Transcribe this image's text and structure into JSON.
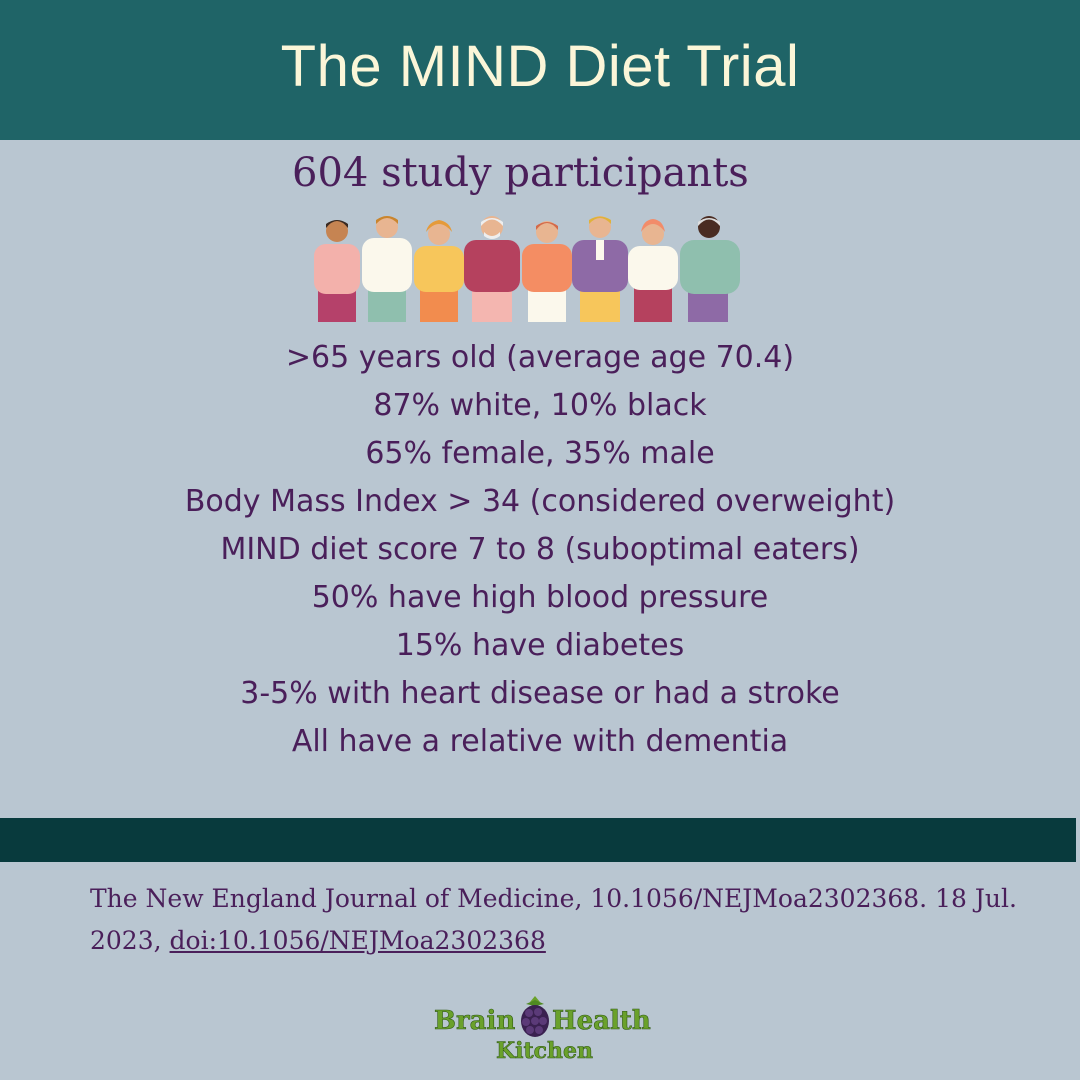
{
  "header": {
    "title": "The MIND Diet Trial"
  },
  "subtitle": "604 study participants",
  "facts": [
    ">65 years old (average age 70.4)",
    "87% white, 10% black",
    "65% female, 35% male",
    "Body Mass Index > 34 (considered overweight)",
    "MIND diet score 7 to 8 (suboptimal eaters)",
    "50% have high blood pressure",
    "15% have diabetes",
    "3-5% with heart disease or had a stroke",
    "All have a relative with dementia"
  ],
  "citation": {
    "text": "The New England Journal of Medicine, 10.1056/NEJMoa2302368. 18 Jul. 2023, ",
    "doi": "doi:10.1056/NEJMoa2302368"
  },
  "logo": {
    "word1": "Brain",
    "word2": "Health",
    "word3": "Kitchen"
  },
  "colors": {
    "header_bg": "#1f6467",
    "title_text": "#fbf6d8",
    "page_bg": "#b9c6d1",
    "body_text": "#4a1f5a",
    "band": "#083a3d",
    "logo_green": "#6aa12b"
  },
  "illustration": "group-of-eight-elderly-people-icon"
}
